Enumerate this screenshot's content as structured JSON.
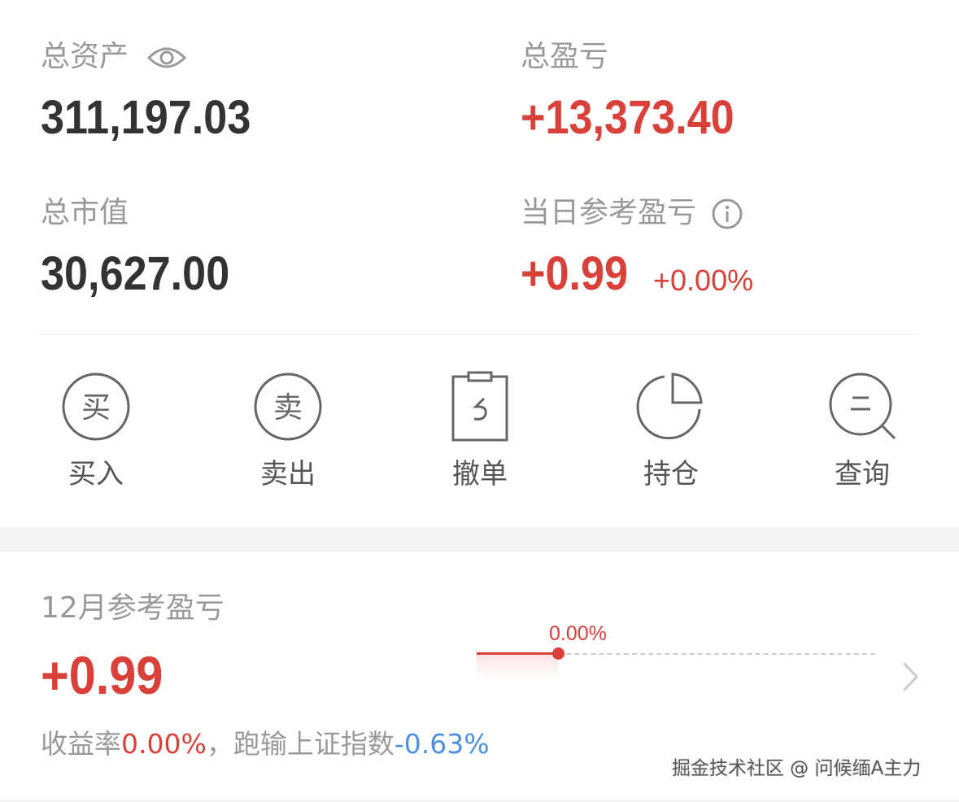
{
  "summary": {
    "total_assets_label": "总资产",
    "total_assets_value": "311,197.03",
    "total_pnl_label": "总盈亏",
    "total_pnl_value": "+13,373.40",
    "market_value_label": "总市值",
    "market_value_value": "30,627.00",
    "daily_pnl_label": "当日参考盈亏",
    "daily_pnl_value": "+0.99",
    "daily_pnl_percent": "+0.00%"
  },
  "actions": [
    {
      "label": "买入",
      "glyph": "买",
      "icon": "buy-icon"
    },
    {
      "label": "卖出",
      "glyph": "卖",
      "icon": "sell-icon"
    },
    {
      "label": "撤单",
      "icon": "clipboard-undo-icon"
    },
    {
      "label": "持仓",
      "icon": "pie-chart-icon"
    },
    {
      "label": "查询",
      "icon": "search-icon"
    }
  ],
  "monthly": {
    "label": "12月参考盈亏",
    "value": "+0.99",
    "chart_label": "0.00%",
    "return_label": "收益率",
    "return_value": "0.00%",
    "compare_text": "，跑输上证指数",
    "compare_value": "-0.63%"
  },
  "watermark": "掘金技术社区 @ 问候缅A主力",
  "colors": {
    "red": "#d9403a",
    "blue": "#4a8fe0",
    "gray": "#999999"
  }
}
